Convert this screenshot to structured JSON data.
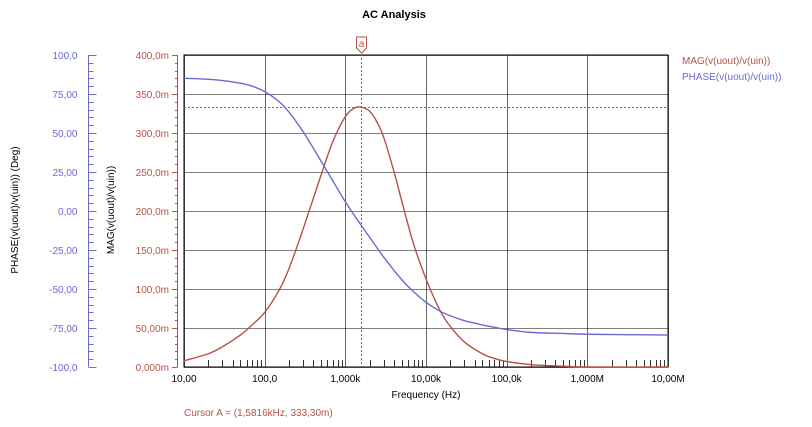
{
  "chart_data": {
    "type": "line",
    "title": "AC Analysis",
    "xlabel": "Frequency (Hz)",
    "xscale": "log",
    "xlim": [
      10,
      10000000
    ],
    "x_ticks": [
      10,
      100,
      1000,
      10000,
      100000,
      1000000,
      10000000
    ],
    "x_tick_labels": [
      "10,00",
      "100,0",
      "1,000k",
      "10,00k",
      "100,0k",
      "1,000M",
      "10,00M"
    ],
    "ylabel_left": "MAG(v(uout)/v(uin))",
    "ylim_left": [
      0,
      400
    ],
    "y_ticks_left": [
      0,
      50,
      100,
      150,
      200,
      250,
      300,
      350,
      400
    ],
    "y_tick_labels_left": [
      "0,000m",
      "50,00m",
      "100,0m",
      "150,0m",
      "200,0m",
      "250,0m",
      "300,0m",
      "350,0m",
      "400,0m"
    ],
    "ylabel_right": "PHASE(v(uout)/v(uin)) (Deg)",
    "ylim_right": [
      -100,
      100
    ],
    "y_ticks_right": [
      -100,
      -75,
      -50,
      -25,
      0,
      25,
      50,
      75,
      100
    ],
    "y_tick_labels_right": [
      "-100,0",
      "-75,00",
      "-50,00",
      "-25,00",
      "0,00",
      "25,00",
      "50,00",
      "75,00",
      "100,0"
    ],
    "grid": true,
    "legend_position": "top-right",
    "series": [
      {
        "name": "MAG(v(uout)/v(uin))",
        "color": "#b4524a",
        "axis": "left",
        "x": [
          10,
          20,
          30,
          50,
          70,
          100,
          150,
          200,
          300,
          500,
          700,
          1000,
          1300,
          1580,
          2000,
          2500,
          3000,
          4000,
          5000,
          7000,
          10000,
          15000,
          20000,
          30000,
          50000,
          70000,
          100000,
          200000,
          500000,
          1000000,
          10000000
        ],
        "values": [
          8,
          17,
          26,
          41,
          54,
          70,
          98,
          126,
          177,
          246,
          289,
          321,
          332,
          333,
          328,
          313,
          294,
          251,
          213,
          158,
          113,
          72,
          52,
          32,
          17,
          11,
          7,
          3,
          1,
          0,
          0
        ]
      },
      {
        "name": "PHASE(v(uout)/v(uin))",
        "color": "#6b6bd2",
        "axis": "right",
        "x": [
          10,
          20,
          30,
          50,
          70,
          100,
          150,
          200,
          300,
          500,
          700,
          1000,
          1500,
          2000,
          3000,
          5000,
          7000,
          10000,
          15000,
          20000,
          30000,
          50000,
          70000,
          100000,
          200000,
          500000,
          1000000,
          10000000
        ],
        "values": [
          85.1,
          84.4,
          83.6,
          81.9,
          80.0,
          76.6,
          70.2,
          63.4,
          50.8,
          32.0,
          19.3,
          5.9,
          -7.7,
          -16.8,
          -29.7,
          -44.0,
          -51.7,
          -58.5,
          -64.3,
          -67.1,
          -70.3,
          -73.0,
          -74.5,
          -76.0,
          -77.8,
          -78.5,
          -79.0,
          -79.5
        ]
      }
    ],
    "cursor": {
      "marker": "a",
      "x": 1581.6,
      "y": 333.3,
      "readout": "Cursor A = (1,5816kHz, 333,30m)"
    }
  }
}
